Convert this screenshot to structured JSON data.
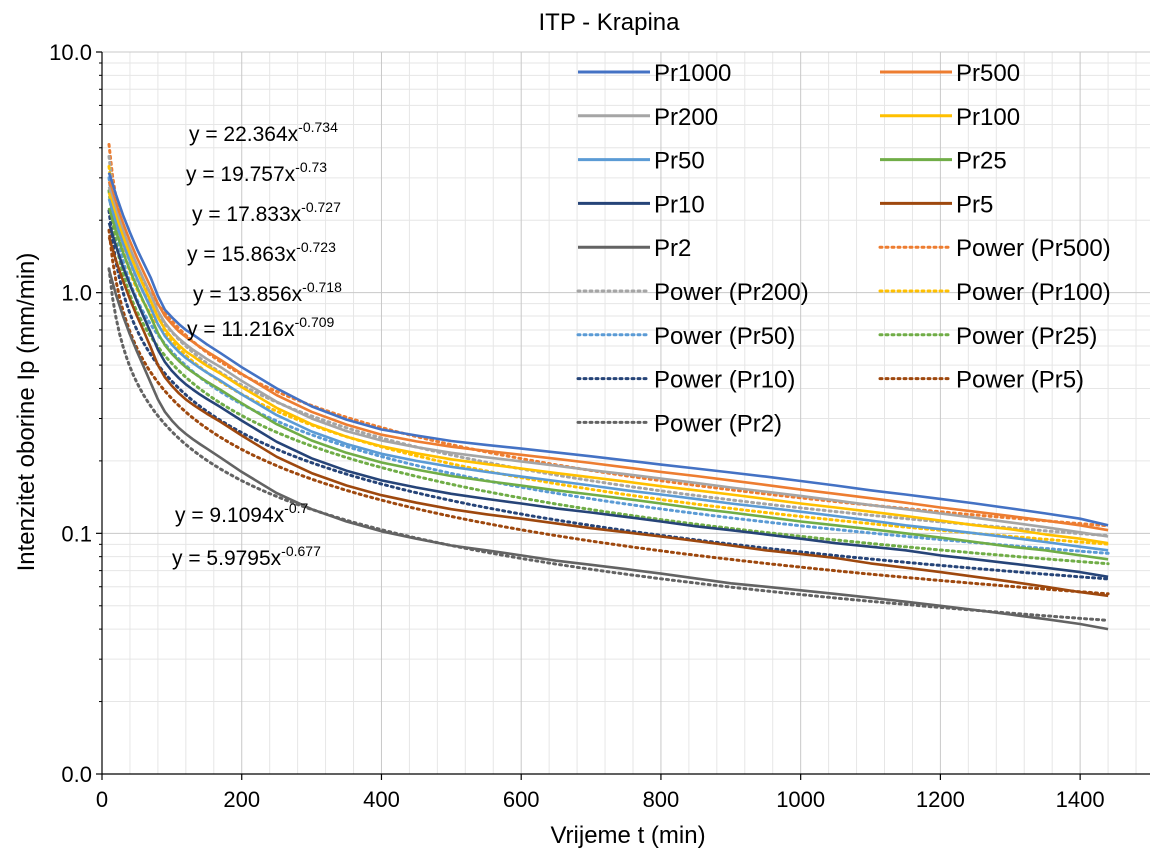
{
  "chart_data": {
    "type": "line",
    "title": "ITP - Krapina",
    "xlabel": "Vrijeme t (min)",
    "ylabel": "Intenzitet oborine Ip (mm/min)",
    "x_axis": {
      "range": [
        0,
        1500
      ],
      "ticks": [
        0,
        200,
        400,
        600,
        800,
        1000,
        1200,
        1400
      ],
      "minor_gridlines": true
    },
    "y_axis": {
      "scale": "log",
      "range": [
        0.01,
        10
      ],
      "tick_values": [
        0.01,
        0.1,
        1,
        10
      ],
      "tick_labels": [
        "0.0",
        "0.1",
        "1.0",
        "10.0"
      ],
      "minor_gridlines": true
    },
    "grid": true,
    "legend_position": "top-right",
    "legend_columns": 2,
    "x": [
      10,
      20,
      30,
      40,
      50,
      60,
      70,
      80,
      90,
      100,
      110,
      120,
      130,
      140,
      150,
      170,
      200,
      250,
      300,
      350,
      400,
      450,
      500,
      550,
      600,
      650,
      700,
      750,
      800,
      850,
      900,
      950,
      1000,
      1050,
      1100,
      1150,
      1200,
      1250,
      1300,
      1350,
      1400,
      1440
    ],
    "series": [
      {
        "name": "Pr1000",
        "color": "#4472C4",
        "style": "solid",
        "values": [
          3.15,
          2.55,
          2.1,
          1.78,
          1.52,
          1.32,
          1.15,
          0.97,
          0.85,
          0.79,
          0.74,
          0.7,
          0.67,
          0.64,
          0.61,
          0.56,
          0.49,
          0.4,
          0.337,
          0.297,
          0.27,
          0.255,
          0.242,
          0.233,
          0.225,
          0.217,
          0.209,
          0.201,
          0.193,
          0.186,
          0.179,
          0.172,
          0.165,
          0.158,
          0.151,
          0.145,
          0.139,
          0.133,
          0.127,
          0.121,
          0.115,
          0.108
        ]
      },
      {
        "name": "Pr500",
        "color": "#ED7D31",
        "style": "solid",
        "values": [
          2.9,
          2.35,
          1.95,
          1.64,
          1.4,
          1.21,
          1.05,
          0.9,
          0.8,
          0.74,
          0.69,
          0.655,
          0.625,
          0.595,
          0.57,
          0.525,
          0.46,
          0.375,
          0.32,
          0.283,
          0.257,
          0.241,
          0.229,
          0.22,
          0.212,
          0.204,
          0.196,
          0.188,
          0.18,
          0.173,
          0.166,
          0.159,
          0.152,
          0.146,
          0.14,
          0.134,
          0.128,
          0.123,
          0.118,
          0.113,
          0.108,
          0.103
        ]
      },
      {
        "name": "Pr200",
        "color": "#A5A5A5",
        "style": "solid",
        "values": [
          2.75,
          2.2,
          1.82,
          1.53,
          1.31,
          1.13,
          0.98,
          0.84,
          0.75,
          0.69,
          0.645,
          0.61,
          0.58,
          0.555,
          0.53,
          0.49,
          0.43,
          0.352,
          0.3,
          0.266,
          0.243,
          0.228,
          0.216,
          0.207,
          0.199,
          0.191,
          0.183,
          0.176,
          0.169,
          0.162,
          0.155,
          0.149,
          0.143,
          0.137,
          0.131,
          0.126,
          0.121,
          0.116,
          0.111,
          0.106,
          0.101,
          0.097
        ]
      },
      {
        "name": "Pr100",
        "color": "#FFC000",
        "style": "solid",
        "values": [
          2.6,
          2.08,
          1.71,
          1.44,
          1.23,
          1.06,
          0.92,
          0.79,
          0.705,
          0.65,
          0.605,
          0.57,
          0.545,
          0.52,
          0.497,
          0.46,
          0.405,
          0.332,
          0.284,
          0.252,
          0.23,
          0.215,
          0.203,
          0.194,
          0.186,
          0.178,
          0.171,
          0.164,
          0.157,
          0.151,
          0.145,
          0.139,
          0.133,
          0.128,
          0.123,
          0.118,
          0.113,
          0.108,
          0.104,
          0.099,
          0.095,
          0.091
        ]
      },
      {
        "name": "Pr50",
        "color": "#5B9BD5",
        "style": "solid",
        "values": [
          2.45,
          1.95,
          1.6,
          1.35,
          1.15,
          0.99,
          0.86,
          0.74,
          0.66,
          0.608,
          0.567,
          0.535,
          0.51,
          0.487,
          0.466,
          0.43,
          0.378,
          0.31,
          0.265,
          0.235,
          0.214,
          0.2,
          0.189,
          0.18,
          0.172,
          0.165,
          0.158,
          0.151,
          0.145,
          0.139,
          0.133,
          0.128,
          0.123,
          0.118,
          0.113,
          0.108,
          0.104,
          0.1,
          0.096,
          0.092,
          0.088,
          0.085
        ]
      },
      {
        "name": "Pr25",
        "color": "#70AD47",
        "style": "solid",
        "values": [
          2.25,
          1.8,
          1.47,
          1.24,
          1.06,
          0.91,
          0.79,
          0.68,
          0.605,
          0.557,
          0.52,
          0.49,
          0.467,
          0.446,
          0.427,
          0.394,
          0.347,
          0.284,
          0.243,
          0.216,
          0.197,
          0.184,
          0.173,
          0.165,
          0.158,
          0.151,
          0.145,
          0.139,
          0.133,
          0.127,
          0.122,
          0.117,
          0.112,
          0.108,
          0.104,
          0.1,
          0.096,
          0.092,
          0.088,
          0.085,
          0.081,
          0.078
        ]
      },
      {
        "name": "Pr10",
        "color": "#264478",
        "style": "solid",
        "values": [
          1.95,
          1.56,
          1.28,
          1.08,
          0.92,
          0.79,
          0.68,
          0.58,
          0.515,
          0.473,
          0.441,
          0.416,
          0.396,
          0.378,
          0.362,
          0.334,
          0.294,
          0.24,
          0.205,
          0.182,
          0.166,
          0.155,
          0.146,
          0.139,
          0.133,
          0.127,
          0.122,
          0.117,
          0.112,
          0.107,
          0.103,
          0.099,
          0.095,
          0.091,
          0.088,
          0.085,
          0.081,
          0.078,
          0.075,
          0.072,
          0.069,
          0.066
        ]
      },
      {
        "name": "Pr5",
        "color": "#9E480E",
        "style": "solid",
        "values": [
          1.7,
          1.36,
          1.12,
          0.94,
          0.8,
          0.69,
          0.59,
          0.5,
          0.445,
          0.41,
          0.382,
          0.36,
          0.343,
          0.328,
          0.314,
          0.29,
          0.255,
          0.208,
          0.178,
          0.158,
          0.144,
          0.134,
          0.126,
          0.12,
          0.115,
          0.11,
          0.105,
          0.101,
          0.097,
          0.093,
          0.089,
          0.085,
          0.082,
          0.079,
          0.075,
          0.072,
          0.069,
          0.066,
          0.063,
          0.06,
          0.057,
          0.055
        ]
      },
      {
        "name": "Pr2",
        "color": "#636363",
        "style": "solid",
        "values": [
          1.25,
          0.98,
          0.8,
          0.67,
          0.57,
          0.49,
          0.42,
          0.36,
          0.32,
          0.294,
          0.274,
          0.259,
          0.246,
          0.235,
          0.225,
          0.206,
          0.18,
          0.147,
          0.126,
          0.112,
          0.102,
          0.095,
          0.089,
          0.085,
          0.081,
          0.077,
          0.074,
          0.071,
          0.068,
          0.065,
          0.062,
          0.06,
          0.058,
          0.056,
          0.054,
          0.052,
          0.05,
          0.048,
          0.046,
          0.044,
          0.042,
          0.04
        ]
      },
      {
        "name": "Power (Pr500)",
        "color": "#ED7D31",
        "style": "dotted",
        "trend": {
          "a": 22.364,
          "b": -0.734
        }
      },
      {
        "name": "Power (Pr200)",
        "color": "#A5A5A5",
        "style": "dotted",
        "trend": {
          "a": 19.757,
          "b": -0.73
        }
      },
      {
        "name": "Power (Pr100)",
        "color": "#FFC000",
        "style": "dotted",
        "trend": {
          "a": 17.833,
          "b": -0.727
        }
      },
      {
        "name": "Power (Pr50)",
        "color": "#5B9BD5",
        "style": "dotted",
        "trend": {
          "a": 15.863,
          "b": -0.723
        }
      },
      {
        "name": "Power (Pr25)",
        "color": "#70AD47",
        "style": "dotted",
        "trend": {
          "a": 13.856,
          "b": -0.718
        }
      },
      {
        "name": "Power (Pr10)",
        "color": "#264478",
        "style": "dotted",
        "trend": {
          "a": 11.216,
          "b": -0.709
        }
      },
      {
        "name": "Power (Pr5)",
        "color": "#9E480E",
        "style": "dotted",
        "trend": {
          "a": 9.1094,
          "b": -0.7
        }
      },
      {
        "name": "Power (Pr2)",
        "color": "#636363",
        "style": "dotted",
        "trend": {
          "a": 5.9795,
          "b": -0.677
        }
      }
    ],
    "legend_order": [
      "Pr1000",
      "Pr500",
      "Pr200",
      "Pr100",
      "Pr50",
      "Pr25",
      "Pr10",
      "Pr5",
      "Pr2",
      "Power (Pr500)",
      "Power (Pr200)",
      "Power (Pr100)",
      "Power (Pr50)",
      "Power (Pr25)",
      "Power (Pr10)",
      "Power (Pr5)",
      "Power (Pr2)"
    ],
    "equations": [
      {
        "base": "y = 22.364x",
        "exp": "-0.734"
      },
      {
        "base": "y = 19.757x",
        "exp": "-0.73"
      },
      {
        "base": "y = 17.833x",
        "exp": "-0.727"
      },
      {
        "base": "y = 15.863x",
        "exp": "-0.723"
      },
      {
        "base": "y = 13.856x",
        "exp": "-0.718"
      },
      {
        "base": "y = 11.216x",
        "exp": "-0.709"
      },
      {
        "base": "y = 9.1094x",
        "exp": "-0.7"
      },
      {
        "base": "y = 5.9795x",
        "exp": "-0.677"
      }
    ]
  }
}
